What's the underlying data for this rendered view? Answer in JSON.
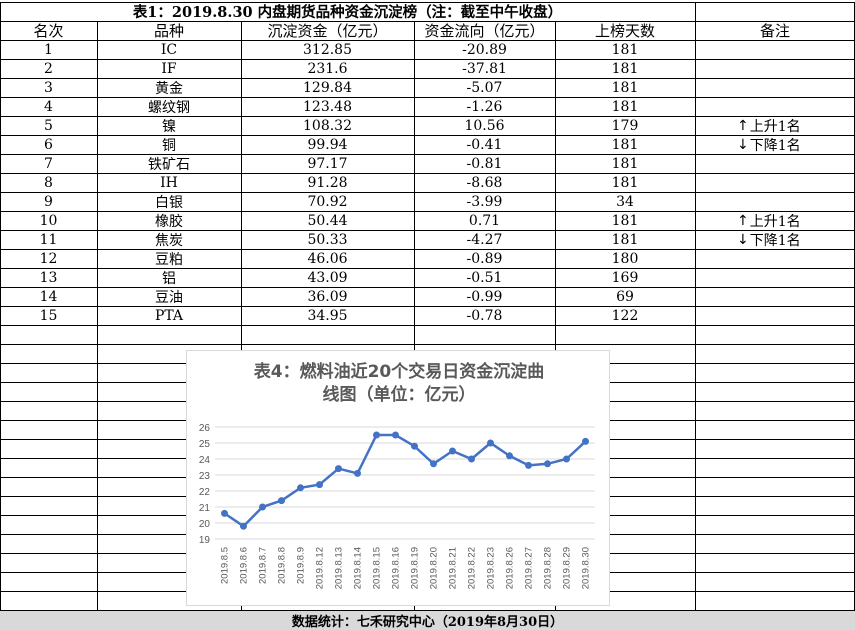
{
  "table": {
    "title": "表1：2019.8.30 内盘期货品种资金沉淀榜（注：截至中午收盘）",
    "headers": [
      "名次",
      "品种",
      "沉淀资金（亿元）",
      "资金流向（亿元）",
      "上榜天数",
      "备注"
    ],
    "rows": [
      {
        "rank": "1",
        "name": "IC",
        "sediment": "312.85",
        "flow": "-20.89",
        "days": "181",
        "note": ""
      },
      {
        "rank": "2",
        "name": "IF",
        "sediment": "231.6",
        "flow": "-37.81",
        "days": "181",
        "note": ""
      },
      {
        "rank": "3",
        "name": "黄金",
        "sediment": "129.84",
        "flow": "-5.07",
        "days": "181",
        "note": ""
      },
      {
        "rank": "4",
        "name": "螺纹钢",
        "sediment": "123.48",
        "flow": "-1.26",
        "days": "181",
        "note": ""
      },
      {
        "rank": "5",
        "name": "镍",
        "sediment": "108.32",
        "flow": "10.56",
        "days": "179",
        "note": "上升1名",
        "arrow": "up"
      },
      {
        "rank": "6",
        "name": "铜",
        "sediment": "99.94",
        "flow": "-0.41",
        "days": "181",
        "note": "下降1名",
        "arrow": "down"
      },
      {
        "rank": "7",
        "name": "铁矿石",
        "sediment": "97.17",
        "flow": "-0.81",
        "days": "181",
        "note": ""
      },
      {
        "rank": "8",
        "name": "IH",
        "sediment": "91.28",
        "flow": "-8.68",
        "days": "181",
        "note": ""
      },
      {
        "rank": "9",
        "name": "白银",
        "sediment": "70.92",
        "flow": "-3.99",
        "days": "34",
        "note": ""
      },
      {
        "rank": "10",
        "name": "橡胶",
        "sediment": "50.44",
        "flow": "0.71",
        "days": "181",
        "note": "上升1名",
        "arrow": "up"
      },
      {
        "rank": "11",
        "name": "焦炭",
        "sediment": "50.33",
        "flow": "-4.27",
        "days": "181",
        "note": "下降1名",
        "arrow": "down"
      },
      {
        "rank": "12",
        "name": "豆粕",
        "sediment": "46.06",
        "flow": "-0.89",
        "days": "180",
        "note": ""
      },
      {
        "rank": "13",
        "name": "铝",
        "sediment": "43.09",
        "flow": "-0.51",
        "days": "169",
        "note": ""
      },
      {
        "rank": "14",
        "name": "豆油",
        "sediment": "36.09",
        "flow": "-0.99",
        "days": "69",
        "note": ""
      },
      {
        "rank": "15",
        "name": "PTA",
        "sediment": "34.95",
        "flow": "-0.78",
        "days": "122",
        "note": ""
      }
    ]
  },
  "footer": "数据统计：七禾研究中心（2019年8月30日）",
  "colors": {
    "line": "#4472c4",
    "footer_bg": "#d9d9d9",
    "grid": "#d9d9d9",
    "chart_text": "#595959"
  },
  "chart_data": {
    "type": "line",
    "title": "表4：燃料油近20个交易日资金沉淀曲线图（单位：亿元）",
    "title_lines": [
      "表4：燃料油近20个交易日资金沉淀曲",
      "线图（单位：亿元）"
    ],
    "categories": [
      "2019.8.5",
      "2019.8.6",
      "2019.8.7",
      "2019.8.8",
      "2019.8.9",
      "2019.8.12",
      "2019.8.13",
      "2019.8.14",
      "2019.8.15",
      "2019.8.16",
      "2019.8.19",
      "2019.8.20",
      "2019.8.21",
      "2019.8.22",
      "2019.8.23",
      "2019.8.26",
      "2019.8.27",
      "2019.8.28",
      "2019.8.29",
      "2019.8.30"
    ],
    "values": [
      20.6,
      19.8,
      21.0,
      21.4,
      22.2,
      22.4,
      23.4,
      23.1,
      25.5,
      25.5,
      24.8,
      23.7,
      24.5,
      24.0,
      25.0,
      24.2,
      23.6,
      23.7,
      24.0,
      25.1
    ],
    "ylim": [
      19,
      26
    ],
    "yticks": [
      19,
      20,
      21,
      22,
      23,
      24,
      25,
      26
    ],
    "grid": true,
    "markers": true
  }
}
